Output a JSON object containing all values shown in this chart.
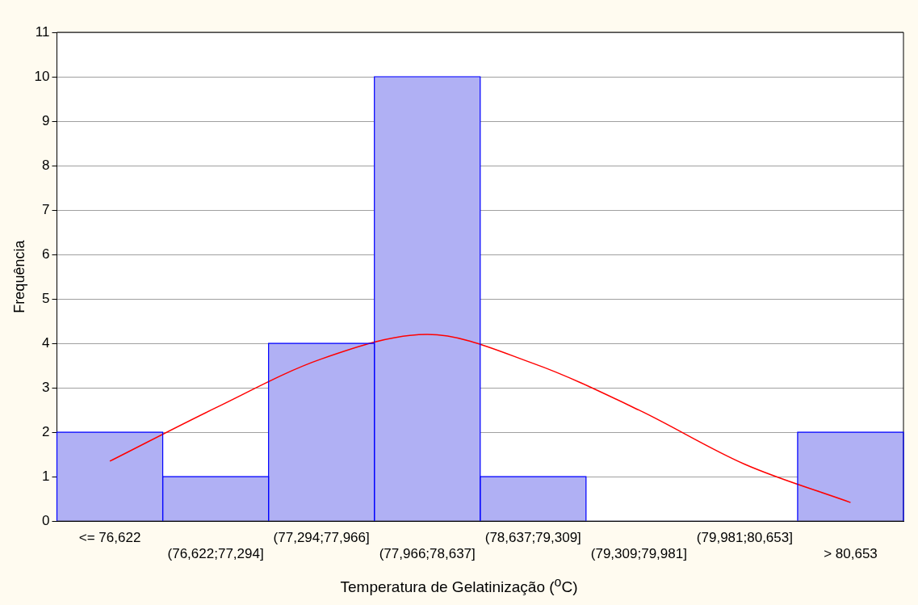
{
  "chart_data": {
    "type": "bar",
    "xlabel": "Temperatura de Gelatinização ($^{o}$C)",
    "ylabel": "Frequência",
    "categories": [
      "<= 76,622",
      "(76,622;77,294]",
      "(77,294;77,966]",
      "(77,966;78,637]",
      "(78,637;79,309]",
      "(79,309;79,981]",
      "(79,981;80,653]",
      "> 80,653"
    ],
    "series": [
      {
        "color": "#b0b0f4",
        "values": [
          2,
          1,
          4,
          10,
          1,
          0,
          0,
          2
        ]
      },
      {
        "type": "line",
        "color": "#ff0000",
        "values": [
          1.35,
          2.55,
          3.65,
          4.2,
          3.55,
          2.5,
          1.28,
          0.42
        ]
      }
    ],
    "ylim": [
      0,
      11
    ],
    "yticks": [
      0,
      1,
      2,
      3,
      4,
      5,
      6,
      7,
      8,
      9,
      10,
      11
    ],
    "grid": "y",
    "marker": "none",
    "line_style": "solid"
  }
}
